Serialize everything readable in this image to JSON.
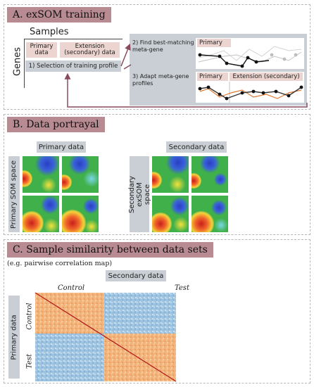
{
  "panel_a": {
    "title": "A. exSOM training",
    "samples_label": "Samples",
    "genes_label": "Genes",
    "primary_data": "Primary data",
    "extension_data": "Extension (secondary) data",
    "step1": "1) Selection of training profile",
    "step2": "2) Find best-matching meta-gene",
    "step3": "3) Adapt meta-gene profiles",
    "primary_tag": "Primary",
    "primary_tag2": "Primary",
    "extension_tag": "Extension (secondary)"
  },
  "panel_b": {
    "title": "B. Data portrayal",
    "primary_header": "Primary data",
    "secondary_header": "Secondary data",
    "primary_axis": "Primary SOM space",
    "secondary_axis": "Secondary exSOM space"
  },
  "panel_c": {
    "title": "C. Sample similarity between data sets",
    "subtitle": "(e.g. pairwise correlation map)",
    "secondary_header": "Secondary data",
    "control_label": "Control",
    "test_label": "Test",
    "primary_axis": "Primary data",
    "control_label_y": "Control",
    "test_label_y": "Test"
  },
  "colors": {
    "title_bg": "#b88a92",
    "gray_box": "#c9cfd4",
    "pink_box": "#ecd4d0",
    "arrow": "#8a4a5a",
    "heat_orange": "#f2b27a",
    "heat_blue": "#9ec3e0",
    "diagonal": "#b01818"
  }
}
